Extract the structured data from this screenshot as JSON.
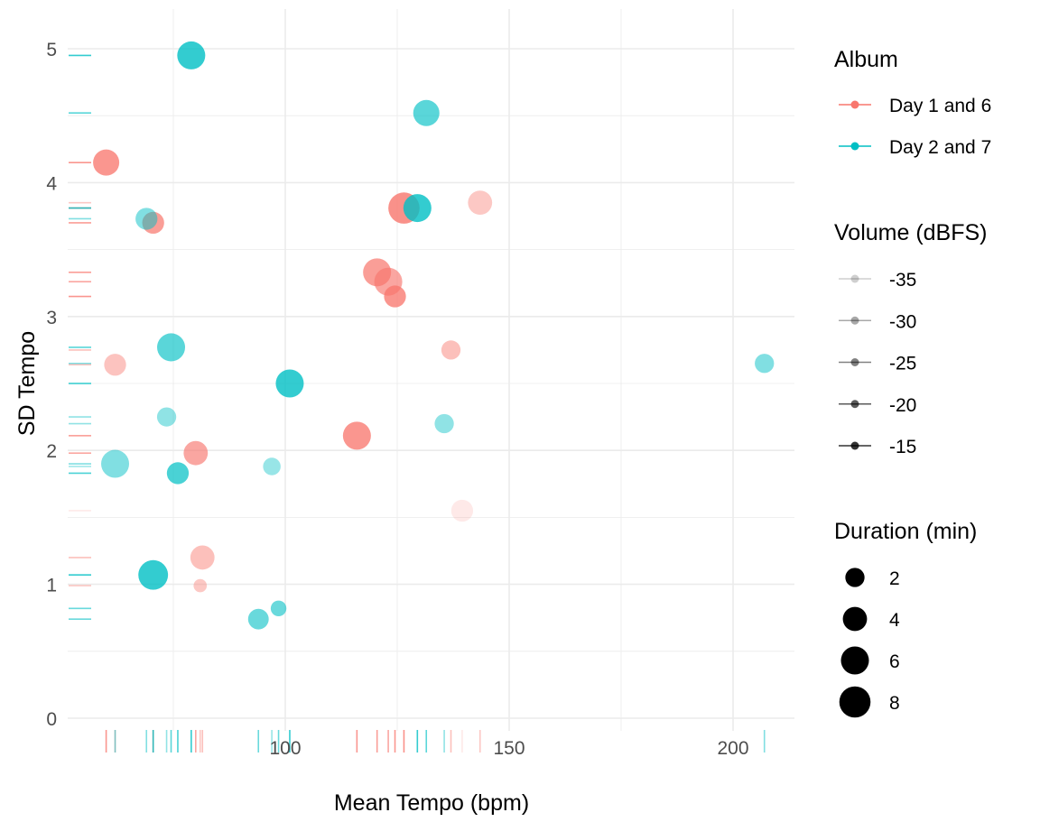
{
  "chart_data": {
    "type": "scatter",
    "xlabel": "Mean Tempo (bpm)",
    "ylabel": "SD Tempo",
    "xlim": [
      52,
      214
    ],
    "ylim": [
      -0.1,
      5.2
    ],
    "x_ticks": [
      100,
      150,
      200
    ],
    "y_ticks": [
      0,
      1,
      2,
      3,
      4,
      5
    ],
    "x_tick_labels": [
      "100",
      "150",
      "200"
    ],
    "y_tick_labels": [
      "0",
      "1",
      "2",
      "3",
      "4",
      "5"
    ],
    "grid": true,
    "rug": true,
    "legend_position": "right",
    "legend": {
      "album": {
        "title": "Album",
        "entries": [
          {
            "label": "Day 1 and 6",
            "color": "#F8766D"
          },
          {
            "label": "Day 2 and 7",
            "color": "#00BFC4"
          }
        ]
      },
      "volume": {
        "title": "Volume (dBFS)",
        "entries": [
          {
            "label": "-35",
            "value": -35
          },
          {
            "label": "-30",
            "value": -30
          },
          {
            "label": "-25",
            "value": -25
          },
          {
            "label": "-20",
            "value": -20
          },
          {
            "label": "-15",
            "value": -15
          }
        ]
      },
      "duration": {
        "title": "Duration (min)",
        "entries": [
          {
            "label": "2",
            "value": 2
          },
          {
            "label": "4",
            "value": 4
          },
          {
            "label": "6",
            "value": 6
          },
          {
            "label": "8",
            "value": 8
          }
        ]
      }
    },
    "series": [
      {
        "name": "Day 1 and 6",
        "color": "#F8766D",
        "points": [
          {
            "x": 60,
            "y": 4.15,
            "duration": 5,
            "volume": -16
          },
          {
            "x": 70.5,
            "y": 3.7,
            "duration": 3,
            "volume": -18
          },
          {
            "x": 62,
            "y": 2.64,
            "duration": 3,
            "volume": -27
          },
          {
            "x": 80,
            "y": 1.98,
            "duration": 4,
            "volume": -20
          },
          {
            "x": 81.5,
            "y": 1.2,
            "duration": 4,
            "volume": -26
          },
          {
            "x": 81,
            "y": 0.99,
            "duration": 0.5,
            "volume": -28
          },
          {
            "x": 116,
            "y": 2.11,
            "duration": 6,
            "volume": -16
          },
          {
            "x": 120.5,
            "y": 3.33,
            "duration": 6,
            "volume": -18
          },
          {
            "x": 123,
            "y": 3.26,
            "duration": 6,
            "volume": -20
          },
          {
            "x": 124.5,
            "y": 3.15,
            "duration": 3,
            "volume": -16
          },
          {
            "x": 126.5,
            "y": 3.81,
            "duration": 8,
            "volume": -15
          },
          {
            "x": 137,
            "y": 2.75,
            "duration": 2,
            "volume": -26
          },
          {
            "x": 139.5,
            "y": 1.55,
            "duration": 3,
            "volume": -36
          },
          {
            "x": 143.5,
            "y": 3.85,
            "duration": 4,
            "volume": -28
          }
        ]
      },
      {
        "name": "Day 2 and 7",
        "color": "#00BFC4",
        "points": [
          {
            "x": 79,
            "y": 4.95,
            "duration": 6,
            "volume": -15
          },
          {
            "x": 131.5,
            "y": 4.52,
            "duration": 5,
            "volume": -20
          },
          {
            "x": 69,
            "y": 3.73,
            "duration": 3,
            "volume": -25
          },
          {
            "x": 129.5,
            "y": 3.81,
            "duration": 6,
            "volume": -15
          },
          {
            "x": 74.5,
            "y": 2.77,
            "duration": 6,
            "volume": -20
          },
          {
            "x": 101,
            "y": 2.5,
            "duration": 6,
            "volume": -15
          },
          {
            "x": 207,
            "y": 2.65,
            "duration": 2,
            "volume": -25
          },
          {
            "x": 73.5,
            "y": 2.25,
            "duration": 2,
            "volume": -27
          },
          {
            "x": 135.5,
            "y": 2.2,
            "duration": 2,
            "volume": -27
          },
          {
            "x": 62,
            "y": 1.9,
            "duration": 6,
            "volume": -25
          },
          {
            "x": 76,
            "y": 1.83,
            "duration": 3,
            "volume": -18
          },
          {
            "x": 97,
            "y": 1.88,
            "duration": 1.5,
            "volume": -28
          },
          {
            "x": 70.5,
            "y": 1.07,
            "duration": 7,
            "volume": -15
          },
          {
            "x": 94,
            "y": 0.74,
            "duration": 2.5,
            "volume": -22
          },
          {
            "x": 98.5,
            "y": 0.82,
            "duration": 1,
            "volume": -22
          }
        ]
      }
    ]
  }
}
